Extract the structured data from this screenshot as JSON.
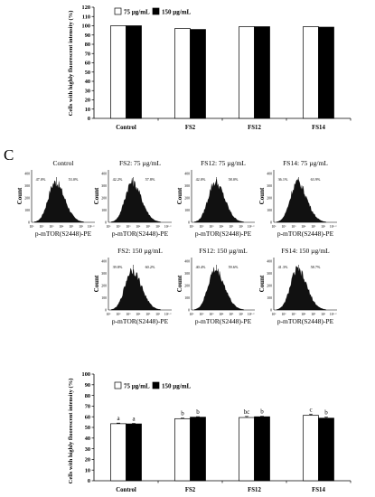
{
  "panel_label": "C",
  "top_chart": {
    "legend": [
      "75 µg/mL",
      "150 µg/mL"
    ]
  },
  "bottom_chart": {
    "legend": [
      "75 µg/mL",
      "150 µg/mL"
    ]
  },
  "histograms": [
    {
      "title": "Control",
      "left_pct": "47.0%",
      "right_pct": "53.0%",
      "xlabel": "p-mTOR(S2448)-PE",
      "ylabel": "Count"
    },
    {
      "title": "FS2: 75 µg/mL",
      "left_pct": "42.2%",
      "right_pct": "57.8%",
      "xlabel": "p-mTOR(S2448)-PE",
      "ylabel": "Count"
    },
    {
      "title": "FS12: 75 µg/mL",
      "left_pct": "42.0%",
      "right_pct": "58.0%",
      "xlabel": "p-mTOR(S2448)-PE",
      "ylabel": "Count"
    },
    {
      "title": "FS14: 75 µg/mL",
      "left_pct": "36.1%",
      "right_pct": "63.9%",
      "xlabel": "p-mTOR(S2448)-PE",
      "ylabel": "Count"
    },
    {
      "title": "FS2: 150 µg/mL",
      "left_pct": "39.8%",
      "right_pct": "60.2%",
      "xlabel": "p-mTOR(S2448)-PE",
      "ylabel": "Count"
    },
    {
      "title": "FS12: 150 µg/mL",
      "left_pct": "40.4%",
      "right_pct": "59.6%",
      "xlabel": "p-mTOR(S2448)-PE",
      "ylabel": "Count"
    },
    {
      "title": "FS14: 150 µg/mL",
      "left_pct": "41.3%",
      "right_pct": "58.7%",
      "xlabel": "p-mTOR(S2448)-PE",
      "ylabel": "Count"
    }
  ],
  "histogram_axis": {
    "y_ticks": [
      "0",
      "100",
      "200",
      "300",
      "400"
    ],
    "x_ticks": [
      "10¹",
      "10²",
      "10³",
      "10⁴",
      "10⁵",
      "10⁶",
      "10⁶·²"
    ]
  },
  "chart_data": [
    {
      "type": "bar",
      "categories": [
        "Control",
        "FS2",
        "FS12",
        "FS14"
      ],
      "series": [
        {
          "name": "75 µg/mL",
          "values": [
            100,
            97,
            99,
            99
          ]
        },
        {
          "name": "150 µg/mL",
          "values": [
            100,
            96,
            99,
            98.5
          ]
        }
      ],
      "ylabel": "Cells with highly fluorescent intensity (%)",
      "xlabel": "",
      "ylim": [
        0,
        120
      ],
      "yticks": [
        0,
        10,
        20,
        30,
        40,
        50,
        60,
        70,
        80,
        90,
        100,
        110,
        120
      ],
      "colors": [
        "#ffffff",
        "#000000"
      ],
      "legend_position": "top-left"
    },
    {
      "type": "bar",
      "categories": [
        "Control",
        "FS2",
        "FS12",
        "FS14"
      ],
      "series": [
        {
          "name": "75 µg/mL",
          "values": [
            53.5,
            58.2,
            59.3,
            61.3
          ],
          "errors": [
            0.6,
            0.6,
            1.0,
            1.2
          ],
          "labels": [
            "a",
            "b",
            "bc",
            "c"
          ]
        },
        {
          "name": "150 µg/mL",
          "values": [
            53.3,
            59.6,
            60.0,
            58.7
          ],
          "errors": [
            0.5,
            0.5,
            0.5,
            1.0
          ],
          "labels": [
            "a",
            "b",
            "b",
            "b"
          ]
        }
      ],
      "ylabel": "Cells with highly fluorescent intensity (%)",
      "xlabel": "",
      "ylim": [
        0,
        100
      ],
      "yticks": [
        0,
        10,
        20,
        30,
        40,
        50,
        60,
        70,
        80,
        90,
        100
      ],
      "colors": [
        "#ffffff",
        "#000000"
      ],
      "legend_position": "top-left"
    }
  ]
}
